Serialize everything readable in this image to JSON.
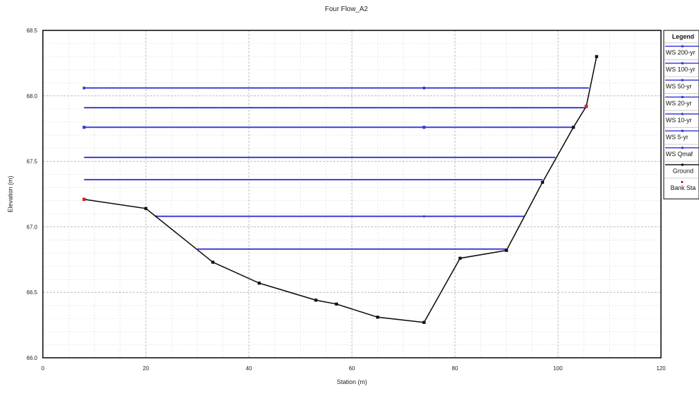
{
  "chart_data": {
    "type": "line",
    "title": "Four Flow_A2",
    "xlabel": "Station (m)",
    "ylabel": "Elevation (m)",
    "xlim": [
      0,
      120
    ],
    "ylim": [
      66.0,
      68.5
    ],
    "x_ticks": [
      0,
      20,
      40,
      60,
      80,
      100,
      120
    ],
    "y_ticks": [
      "66.0",
      "66.5",
      "67.0",
      "67.5",
      "68.0",
      "68.5"
    ],
    "grid": true,
    "legend_position": "right",
    "legend_title": "Legend",
    "colors": {
      "water_surface": "#3a3ad6",
      "ground": "#111111",
      "bank": "#e02020",
      "frame": "#000000",
      "grid": "#bcbcbc"
    },
    "series": [
      {
        "name": "WS 200-yr",
        "kind": "water",
        "marker": "circle",
        "points": [
          [
            8,
            68.06
          ],
          [
            74,
            68.06
          ],
          [
            106,
            68.06
          ]
        ]
      },
      {
        "name": "WS 100-yr",
        "kind": "water",
        "marker": "none",
        "points": [
          [
            8,
            67.91
          ],
          [
            74,
            67.91
          ],
          [
            105.5,
            67.91
          ]
        ]
      },
      {
        "name": "WS 50-yr",
        "kind": "water",
        "marker": "square",
        "points": [
          [
            8,
            67.76
          ],
          [
            74,
            67.76
          ],
          [
            103,
            67.76
          ]
        ]
      },
      {
        "name": "WS 20-yr",
        "kind": "water",
        "marker": "none",
        "points": [
          [
            8,
            67.53
          ],
          [
            74,
            67.53
          ],
          [
            99.5,
            67.53
          ]
        ]
      },
      {
        "name": "WS 10-yr",
        "kind": "water",
        "marker": "none",
        "points": [
          [
            8,
            67.36
          ],
          [
            74,
            67.36
          ],
          [
            97,
            67.36
          ]
        ]
      },
      {
        "name": "WS 5-yr",
        "kind": "water",
        "marker": "dot",
        "points": [
          [
            22,
            67.08
          ],
          [
            74,
            67.08
          ],
          [
            93.5,
            67.08
          ]
        ]
      },
      {
        "name": "WS Qmaf",
        "kind": "water",
        "marker": "none",
        "points": [
          [
            30,
            66.83
          ],
          [
            74,
            66.83
          ],
          [
            90,
            66.83
          ]
        ]
      },
      {
        "name": "Ground",
        "kind": "ground",
        "marker": "square",
        "points": [
          [
            8,
            67.21
          ],
          [
            20,
            67.14
          ],
          [
            33,
            66.73
          ],
          [
            42,
            66.57
          ],
          [
            53,
            66.44
          ],
          [
            57,
            66.41
          ],
          [
            65,
            66.31
          ],
          [
            74,
            66.27
          ],
          [
            81,
            66.76
          ],
          [
            90,
            66.82
          ],
          [
            97,
            67.34
          ],
          [
            103,
            67.76
          ],
          [
            105.5,
            67.92
          ],
          [
            107.5,
            68.3
          ]
        ]
      },
      {
        "name": "Bank Sta",
        "kind": "bank",
        "marker": "square",
        "points": [
          [
            8,
            67.21
          ],
          [
            105.5,
            67.92
          ]
        ]
      }
    ]
  }
}
